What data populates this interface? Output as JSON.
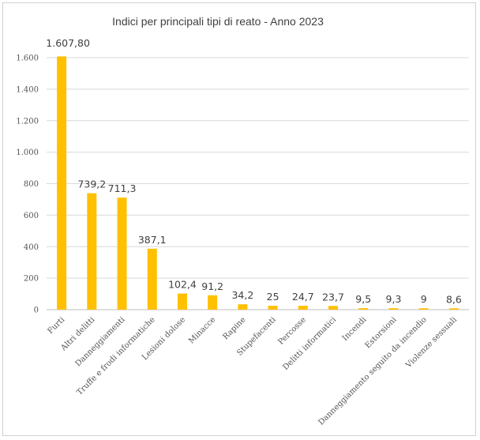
{
  "chart_data": {
    "type": "bar",
    "title": "Indici per principali tipi di reato - Anno 2023",
    "categories": [
      "Furti",
      "Altri delitti",
      "Danneggiamenti",
      "Truffe e frodi informatiche",
      "Lesioni dolose",
      "Minacce",
      "Rapine",
      "Stupefacenti",
      "Percosse",
      "Delitti informatici",
      "Incendi",
      "Estorsioni",
      "Danneggiamento seguito da incendio",
      "Violenze sessuali"
    ],
    "values": [
      1607.8,
      739.2,
      711.3,
      387.1,
      102.4,
      91.2,
      34.2,
      25,
      24.7,
      23.7,
      9.5,
      9.3,
      9,
      8.6
    ],
    "data_labels": [
      "1.607,80",
      "739,2",
      "711,3",
      "387,1",
      "102,4",
      "91,2",
      "34,2",
      "25",
      "24,7",
      "23,7",
      "9,5",
      "9,3",
      "9",
      "8,6"
    ],
    "ylim": [
      0,
      1600
    ],
    "yticks": [
      0,
      200,
      400,
      600,
      800,
      1000,
      1200,
      1400,
      1600
    ],
    "ytick_labels": [
      "0",
      "200",
      "400",
      "600",
      "800",
      "1.000",
      "1.200",
      "1.400",
      "1.600"
    ],
    "grid": true,
    "bar_color": "#FFC000"
  }
}
